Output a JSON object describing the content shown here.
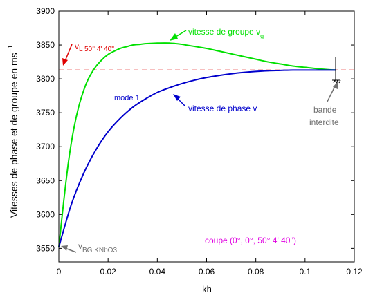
{
  "chart_data": {
    "type": "line",
    "xlabel": "kh",
    "ylabel": "Vitesses de phase et de groupe en ms",
    "ylabel_sup": "−1",
    "xlim": [
      0,
      0.12
    ],
    "ylim": [
      3530,
      3900
    ],
    "x_ticks": [
      0,
      0.02,
      0.04,
      0.06,
      0.08,
      0.1,
      0.12
    ],
    "x_tick_labels": [
      "0",
      "0.02",
      "0.04",
      "0.06",
      "0.08",
      "0.1",
      "0.12"
    ],
    "y_ticks": [
      3550,
      3600,
      3650,
      3700,
      3750,
      3800,
      3850,
      3900
    ],
    "y_tick_labels": [
      "3550",
      "3600",
      "3650",
      "3700",
      "3750",
      "3800",
      "3850",
      "3900"
    ],
    "grid": false,
    "series": [
      {
        "color": "#00e000",
        "x": [
          0,
          0.002,
          0.004,
          0.006,
          0.008,
          0.01,
          0.012,
          0.015,
          0.018,
          0.02,
          0.022,
          0.025,
          0.028,
          0.03,
          0.033,
          0.035,
          0.038,
          0.04,
          0.043,
          0.045,
          0.047,
          0.05,
          0.055,
          0.06,
          0.065,
          0.07,
          0.075,
          0.08,
          0.085,
          0.09,
          0.095,
          0.1,
          0.105,
          0.11,
          0.1125
        ],
        "y": [
          3552,
          3620,
          3680,
          3725,
          3758,
          3782,
          3800,
          3818,
          3830,
          3836,
          3840,
          3845,
          3848,
          3850,
          3851,
          3852,
          3852.5,
          3852.8,
          3853,
          3852.8,
          3852.3,
          3851,
          3848,
          3845,
          3841,
          3837,
          3833,
          3829,
          3825,
          3822,
          3819,
          3817,
          3815,
          3813.5,
          3813
        ]
      },
      {
        "color": "#0000cc",
        "x": [
          0,
          0.005,
          0.01,
          0.015,
          0.02,
          0.025,
          0.03,
          0.035,
          0.04,
          0.045,
          0.05,
          0.055,
          0.06,
          0.065,
          0.07,
          0.075,
          0.08,
          0.085,
          0.09,
          0.095,
          0.1,
          0.105,
          0.11,
          0.1125
        ],
        "y": [
          3552,
          3614,
          3660,
          3695,
          3722,
          3742,
          3758,
          3770,
          3780,
          3787,
          3793,
          3798,
          3802,
          3805,
          3807.5,
          3809.5,
          3811,
          3812,
          3812.5,
          3813,
          3813,
          3813,
          3813,
          3813
        ]
      }
    ],
    "reference_line": {
      "y": 3813,
      "color": "#e00000",
      "style": "dashed"
    },
    "annotations": {
      "vg_main": "vitesse de groupe v",
      "vg_sub": "g",
      "vp_label": "vitesse de phase v",
      "mode_label": "mode 1",
      "vl_main": "v",
      "vl_sub": "L 50° 4' 40''",
      "vbg_main": "v",
      "vbg_sub": "BG KNbO3",
      "bande": "bande",
      "interdite": "interdite",
      "coupe": "coupe (0°, 0°, 50° 4' 40'')"
    },
    "colors": {
      "green": "#00e000",
      "blue": "#0000cc",
      "red": "#e00000",
      "magenta": "#e000e0",
      "gray": "#707070"
    }
  }
}
